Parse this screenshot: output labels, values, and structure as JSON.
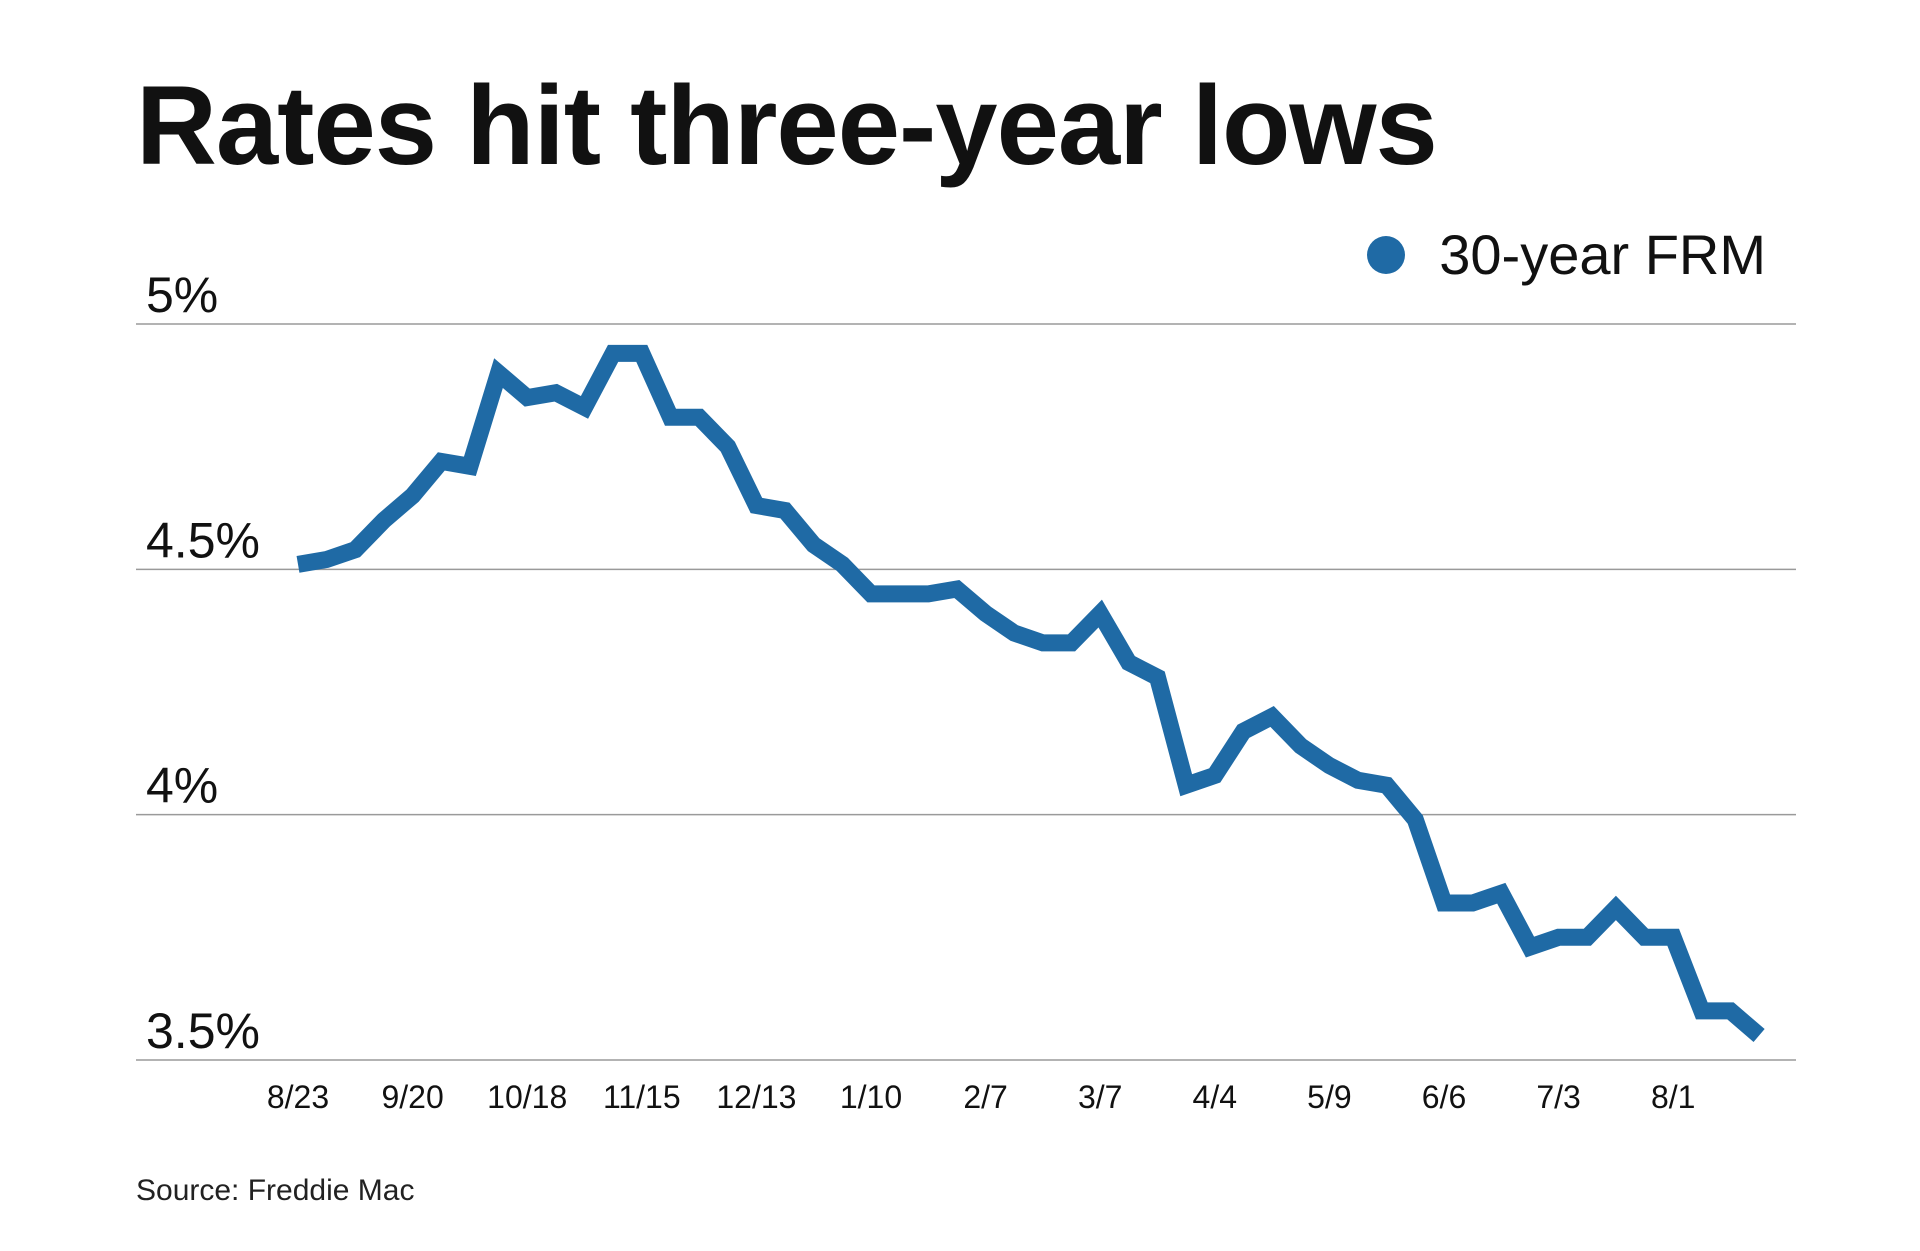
{
  "chart_data": {
    "type": "line",
    "title": "Rates hit three-year lows",
    "source": "Source: Freddie Mac",
    "legend_position": "top-right",
    "grid": true,
    "color": "#1f6aa5",
    "ylim": [
      3.5,
      5.0
    ],
    "y_ticks": [
      {
        "value": 5.0,
        "label": "5%"
      },
      {
        "value": 4.5,
        "label": "4.5%"
      },
      {
        "value": 4.0,
        "label": "4%"
      },
      {
        "value": 3.5,
        "label": "3.5%"
      }
    ],
    "x_tick_labels": [
      "8/23",
      "9/20",
      "10/18",
      "11/15",
      "12/13",
      "1/10",
      "2/7",
      "3/7",
      "4/4",
      "5/9",
      "6/6",
      "7/3",
      "8/1"
    ],
    "x_tick_index_step": 4,
    "series": [
      {
        "name": "30-year FRM",
        "values": [
          4.51,
          4.52,
          4.54,
          4.6,
          4.65,
          4.72,
          4.71,
          4.9,
          4.85,
          4.86,
          4.83,
          4.94,
          4.94,
          4.81,
          4.81,
          4.75,
          4.63,
          4.62,
          4.55,
          4.51,
          4.45,
          4.45,
          4.45,
          4.46,
          4.41,
          4.37,
          4.35,
          4.35,
          4.41,
          4.31,
          4.28,
          4.06,
          4.08,
          4.17,
          4.2,
          4.14,
          4.1,
          4.07,
          4.06,
          3.99,
          3.82,
          3.82,
          3.84,
          3.73,
          3.75,
          3.75,
          3.81,
          3.75,
          3.75,
          3.6,
          3.6,
          3.55
        ]
      }
    ]
  }
}
